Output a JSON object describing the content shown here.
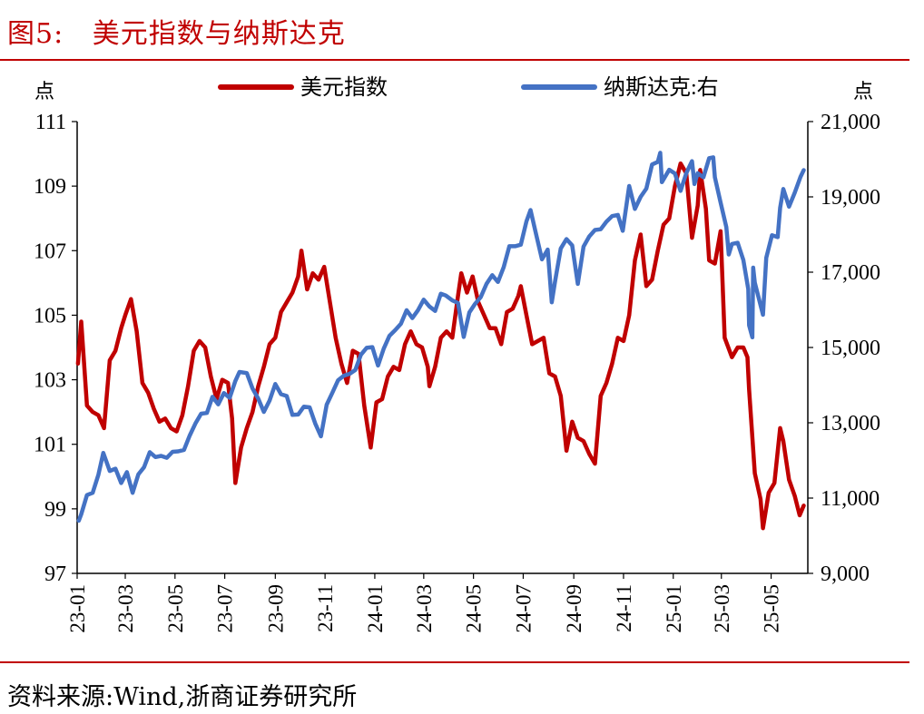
{
  "figure": {
    "title": "图5:   美元指数与纳斯达克",
    "source": "资料来源:Wind,浙商证券研究所"
  },
  "chart_data": {
    "type": "line",
    "left_axis": {
      "unit": "点",
      "ticks": [
        97,
        99,
        101,
        103,
        105,
        107,
        109,
        111
      ],
      "range": [
        97,
        111
      ]
    },
    "right_axis": {
      "unit": "点",
      "ticks": [
        "9,000",
        "11,000",
        "13,000",
        "15,000",
        "17,000",
        "19,000",
        "21,000"
      ],
      "range": [
        9000,
        21000
      ]
    },
    "x_ticks": [
      "23-01",
      "23-03",
      "23-05",
      "23-07",
      "23-09",
      "23-11",
      "24-01",
      "24-03",
      "24-05",
      "24-07",
      "24-09",
      "24-11",
      "25-01",
      "25-03",
      "25-05"
    ],
    "legend_position": "top-center",
    "series": [
      {
        "name": "美元指数",
        "axis": "left",
        "color": "#c00000",
        "points": [
          [
            "2023-01-02",
            103.5
          ],
          [
            "2023-01-06",
            104.8
          ],
          [
            "2023-01-13",
            102.2
          ],
          [
            "2023-01-20",
            102.0
          ],
          [
            "2023-01-27",
            101.9
          ],
          [
            "2023-02-03",
            101.5
          ],
          [
            "2023-02-10",
            103.6
          ],
          [
            "2023-02-17",
            103.9
          ],
          [
            "2023-02-24",
            104.6
          ],
          [
            "2023-03-01",
            105.0
          ],
          [
            "2023-03-08",
            105.5
          ],
          [
            "2023-03-15",
            104.5
          ],
          [
            "2023-03-22",
            102.9
          ],
          [
            "2023-03-29",
            102.6
          ],
          [
            "2023-04-05",
            102.1
          ],
          [
            "2023-04-12",
            101.7
          ],
          [
            "2023-04-19",
            101.8
          ],
          [
            "2023-04-26",
            101.5
          ],
          [
            "2023-05-03",
            101.4
          ],
          [
            "2023-05-10",
            101.9
          ],
          [
            "2023-05-17",
            102.8
          ],
          [
            "2023-05-24",
            103.9
          ],
          [
            "2023-05-31",
            104.2
          ],
          [
            "2023-06-07",
            104.0
          ],
          [
            "2023-06-14",
            103.1
          ],
          [
            "2023-06-21",
            102.4
          ],
          [
            "2023-06-28",
            103.0
          ],
          [
            "2023-07-05",
            102.9
          ],
          [
            "2023-07-10",
            101.8
          ],
          [
            "2023-07-14",
            99.8
          ],
          [
            "2023-07-21",
            100.9
          ],
          [
            "2023-07-28",
            101.5
          ],
          [
            "2023-08-04",
            102.0
          ],
          [
            "2023-08-11",
            102.8
          ],
          [
            "2023-08-18",
            103.4
          ],
          [
            "2023-08-25",
            104.1
          ],
          [
            "2023-09-01",
            104.3
          ],
          [
            "2023-09-08",
            105.1
          ],
          [
            "2023-09-15",
            105.4
          ],
          [
            "2023-09-22",
            105.7
          ],
          [
            "2023-09-29",
            106.2
          ],
          [
            "2023-10-03",
            107.0
          ],
          [
            "2023-10-10",
            105.8
          ],
          [
            "2023-10-17",
            106.3
          ],
          [
            "2023-10-24",
            106.1
          ],
          [
            "2023-10-31",
            106.5
          ],
          [
            "2023-11-07",
            105.4
          ],
          [
            "2023-11-14",
            104.3
          ],
          [
            "2023-11-21",
            103.5
          ],
          [
            "2023-11-28",
            102.9
          ],
          [
            "2023-12-05",
            103.9
          ],
          [
            "2023-12-12",
            103.8
          ],
          [
            "2023-12-19",
            102.2
          ],
          [
            "2023-12-27",
            100.9
          ],
          [
            "2024-01-03",
            102.3
          ],
          [
            "2024-01-10",
            102.4
          ],
          [
            "2024-01-17",
            103.1
          ],
          [
            "2024-01-24",
            103.4
          ],
          [
            "2024-01-31",
            103.3
          ],
          [
            "2024-02-07",
            104.1
          ],
          [
            "2024-02-14",
            104.5
          ],
          [
            "2024-02-21",
            104.1
          ],
          [
            "2024-02-28",
            104.0
          ],
          [
            "2024-03-06",
            103.4
          ],
          [
            "2024-03-08",
            102.8
          ],
          [
            "2024-03-15",
            103.4
          ],
          [
            "2024-03-22",
            104.3
          ],
          [
            "2024-03-29",
            104.5
          ],
          [
            "2024-04-05",
            104.3
          ],
          [
            "2024-04-12",
            105.6
          ],
          [
            "2024-04-16",
            106.3
          ],
          [
            "2024-04-23",
            105.7
          ],
          [
            "2024-04-30",
            106.2
          ],
          [
            "2024-05-07",
            105.4
          ],
          [
            "2024-05-14",
            105.0
          ],
          [
            "2024-05-21",
            104.6
          ],
          [
            "2024-05-28",
            104.6
          ],
          [
            "2024-06-04",
            104.1
          ],
          [
            "2024-06-11",
            105.1
          ],
          [
            "2024-06-18",
            105.2
          ],
          [
            "2024-06-25",
            105.6
          ],
          [
            "2024-06-28",
            105.9
          ],
          [
            "2024-07-05",
            105.0
          ],
          [
            "2024-07-12",
            104.1
          ],
          [
            "2024-07-19",
            104.2
          ],
          [
            "2024-07-26",
            104.3
          ],
          [
            "2024-08-02",
            103.2
          ],
          [
            "2024-08-09",
            103.1
          ],
          [
            "2024-08-16",
            102.5
          ],
          [
            "2024-08-23",
            100.8
          ],
          [
            "2024-08-30",
            101.7
          ],
          [
            "2024-09-06",
            101.2
          ],
          [
            "2024-09-13",
            101.1
          ],
          [
            "2024-09-20",
            100.7
          ],
          [
            "2024-09-27",
            100.4
          ],
          [
            "2024-10-04",
            102.5
          ],
          [
            "2024-10-11",
            102.9
          ],
          [
            "2024-10-18",
            103.5
          ],
          [
            "2024-10-25",
            104.3
          ],
          [
            "2024-11-01",
            104.2
          ],
          [
            "2024-11-08",
            105.0
          ],
          [
            "2024-11-15",
            106.7
          ],
          [
            "2024-11-22",
            107.5
          ],
          [
            "2024-11-29",
            105.9
          ],
          [
            "2024-12-06",
            106.1
          ],
          [
            "2024-12-13",
            107.0
          ],
          [
            "2024-12-20",
            107.8
          ],
          [
            "2024-12-27",
            108.0
          ],
          [
            "2025-01-03",
            109.0
          ],
          [
            "2025-01-10",
            109.7
          ],
          [
            "2025-01-17",
            109.4
          ],
          [
            "2025-01-24",
            107.4
          ],
          [
            "2025-01-31",
            108.4
          ],
          [
            "2025-02-03",
            109.5
          ],
          [
            "2025-02-10",
            108.3
          ],
          [
            "2025-02-14",
            106.7
          ],
          [
            "2025-02-21",
            106.6
          ],
          [
            "2025-02-28",
            107.6
          ],
          [
            "2025-03-05",
            104.3
          ],
          [
            "2025-03-14",
            103.7
          ],
          [
            "2025-03-21",
            104.0
          ],
          [
            "2025-03-28",
            104.0
          ],
          [
            "2025-04-02",
            103.7
          ],
          [
            "2025-04-04",
            102.7
          ],
          [
            "2025-04-11",
            100.1
          ],
          [
            "2025-04-18",
            99.3
          ],
          [
            "2025-04-21",
            98.4
          ],
          [
            "2025-04-28",
            99.5
          ],
          [
            "2025-05-05",
            99.8
          ],
          [
            "2025-05-12",
            101.5
          ],
          [
            "2025-05-16",
            101.1
          ],
          [
            "2025-05-23",
            99.9
          ],
          [
            "2025-05-30",
            99.4
          ],
          [
            "2025-06-05",
            98.8
          ],
          [
            "2025-06-10",
            99.1
          ]
        ]
      },
      {
        "name": "纳斯达克:右",
        "axis": "right",
        "color": "#4472c4",
        "points": [
          [
            "2023-01-03",
            10400
          ],
          [
            "2023-01-06",
            10570
          ],
          [
            "2023-01-13",
            11080
          ],
          [
            "2023-01-20",
            11140
          ],
          [
            "2023-01-27",
            11620
          ],
          [
            "2023-02-02",
            12200
          ],
          [
            "2023-02-10",
            11720
          ],
          [
            "2023-02-17",
            11780
          ],
          [
            "2023-02-24",
            11400
          ],
          [
            "2023-03-03",
            11690
          ],
          [
            "2023-03-10",
            11140
          ],
          [
            "2023-03-17",
            11630
          ],
          [
            "2023-03-24",
            11820
          ],
          [
            "2023-03-31",
            12220
          ],
          [
            "2023-04-07",
            12090
          ],
          [
            "2023-04-14",
            12120
          ],
          [
            "2023-04-21",
            12070
          ],
          [
            "2023-04-28",
            12230
          ],
          [
            "2023-05-05",
            12240
          ],
          [
            "2023-05-12",
            12280
          ],
          [
            "2023-05-19",
            12660
          ],
          [
            "2023-05-26",
            12980
          ],
          [
            "2023-06-02",
            13240
          ],
          [
            "2023-06-09",
            13260
          ],
          [
            "2023-06-16",
            13690
          ],
          [
            "2023-06-23",
            13490
          ],
          [
            "2023-06-30",
            13790
          ],
          [
            "2023-07-07",
            13660
          ],
          [
            "2023-07-14",
            14110
          ],
          [
            "2023-07-19",
            14350
          ],
          [
            "2023-07-28",
            14320
          ],
          [
            "2023-08-04",
            13910
          ],
          [
            "2023-08-11",
            13640
          ],
          [
            "2023-08-18",
            13290
          ],
          [
            "2023-08-25",
            13590
          ],
          [
            "2023-09-01",
            14030
          ],
          [
            "2023-09-08",
            13760
          ],
          [
            "2023-09-15",
            13710
          ],
          [
            "2023-09-22",
            13210
          ],
          [
            "2023-09-29",
            13220
          ],
          [
            "2023-10-06",
            13430
          ],
          [
            "2023-10-13",
            13410
          ],
          [
            "2023-10-20",
            12980
          ],
          [
            "2023-10-27",
            12640
          ],
          [
            "2023-11-03",
            13480
          ],
          [
            "2023-11-10",
            13800
          ],
          [
            "2023-11-17",
            14130
          ],
          [
            "2023-11-24",
            14250
          ],
          [
            "2023-12-01",
            14300
          ],
          [
            "2023-12-08",
            14400
          ],
          [
            "2023-12-15",
            14810
          ],
          [
            "2023-12-22",
            14990
          ],
          [
            "2023-12-29",
            15010
          ],
          [
            "2024-01-05",
            14520
          ],
          [
            "2024-01-12",
            14970
          ],
          [
            "2024-01-19",
            15310
          ],
          [
            "2024-01-26",
            15460
          ],
          [
            "2024-02-02",
            15630
          ],
          [
            "2024-02-09",
            15990
          ],
          [
            "2024-02-16",
            15780
          ],
          [
            "2024-02-23",
            15990
          ],
          [
            "2024-03-01",
            16270
          ],
          [
            "2024-03-08",
            16090
          ],
          [
            "2024-03-15",
            15970
          ],
          [
            "2024-03-22",
            16430
          ],
          [
            "2024-03-28",
            16380
          ],
          [
            "2024-04-05",
            16250
          ],
          [
            "2024-04-12",
            16180
          ],
          [
            "2024-04-19",
            15280
          ],
          [
            "2024-04-26",
            15930
          ],
          [
            "2024-05-03",
            16160
          ],
          [
            "2024-05-10",
            16340
          ],
          [
            "2024-05-17",
            16690
          ],
          [
            "2024-05-24",
            16920
          ],
          [
            "2024-05-31",
            16740
          ],
          [
            "2024-06-07",
            17130
          ],
          [
            "2024-06-14",
            17690
          ],
          [
            "2024-06-21",
            17690
          ],
          [
            "2024-06-28",
            17730
          ],
          [
            "2024-07-05",
            18350
          ],
          [
            "2024-07-10",
            18650
          ],
          [
            "2024-07-17",
            17990
          ],
          [
            "2024-07-24",
            17340
          ],
          [
            "2024-07-31",
            17600
          ],
          [
            "2024-08-05",
            16200
          ],
          [
            "2024-08-09",
            16750
          ],
          [
            "2024-08-16",
            17630
          ],
          [
            "2024-08-23",
            17880
          ],
          [
            "2024-08-30",
            17710
          ],
          [
            "2024-09-06",
            16690
          ],
          [
            "2024-09-13",
            17680
          ],
          [
            "2024-09-20",
            17950
          ],
          [
            "2024-09-27",
            18120
          ],
          [
            "2024-10-04",
            18140
          ],
          [
            "2024-10-11",
            18340
          ],
          [
            "2024-10-18",
            18490
          ],
          [
            "2024-10-25",
            18520
          ],
          [
            "2024-10-31",
            18100
          ],
          [
            "2024-11-08",
            19290
          ],
          [
            "2024-11-15",
            18680
          ],
          [
            "2024-11-22",
            19000
          ],
          [
            "2024-11-29",
            19220
          ],
          [
            "2024-12-06",
            19860
          ],
          [
            "2024-12-13",
            19930
          ],
          [
            "2024-12-16",
            20170
          ],
          [
            "2024-12-18",
            19390
          ],
          [
            "2024-12-27",
            19720
          ],
          [
            "2025-01-03",
            19620
          ],
          [
            "2025-01-10",
            19160
          ],
          [
            "2025-01-17",
            19630
          ],
          [
            "2025-01-24",
            19950
          ],
          [
            "2025-01-27",
            19340
          ],
          [
            "2025-01-31",
            19630
          ],
          [
            "2025-02-07",
            19520
          ],
          [
            "2025-02-14",
            20030
          ],
          [
            "2025-02-19",
            20050
          ],
          [
            "2025-02-21",
            19520
          ],
          [
            "2025-02-28",
            18850
          ],
          [
            "2025-03-07",
            18200
          ],
          [
            "2025-03-10",
            17470
          ],
          [
            "2025-03-14",
            17750
          ],
          [
            "2025-03-21",
            17780
          ],
          [
            "2025-03-28",
            17320
          ],
          [
            "2025-04-03",
            16550
          ],
          [
            "2025-04-04",
            15590
          ],
          [
            "2025-04-08",
            15270
          ],
          [
            "2025-04-09",
            17120
          ],
          [
            "2025-04-11",
            16720
          ],
          [
            "2025-04-21",
            15870
          ],
          [
            "2025-04-25",
            17380
          ],
          [
            "2025-05-02",
            17980
          ],
          [
            "2025-05-09",
            17930
          ],
          [
            "2025-05-12",
            18710
          ],
          [
            "2025-05-16",
            19210
          ],
          [
            "2025-05-23",
            18740
          ],
          [
            "2025-05-30",
            19110
          ],
          [
            "2025-06-06",
            19530
          ],
          [
            "2025-06-10",
            19710
          ]
        ]
      }
    ]
  }
}
